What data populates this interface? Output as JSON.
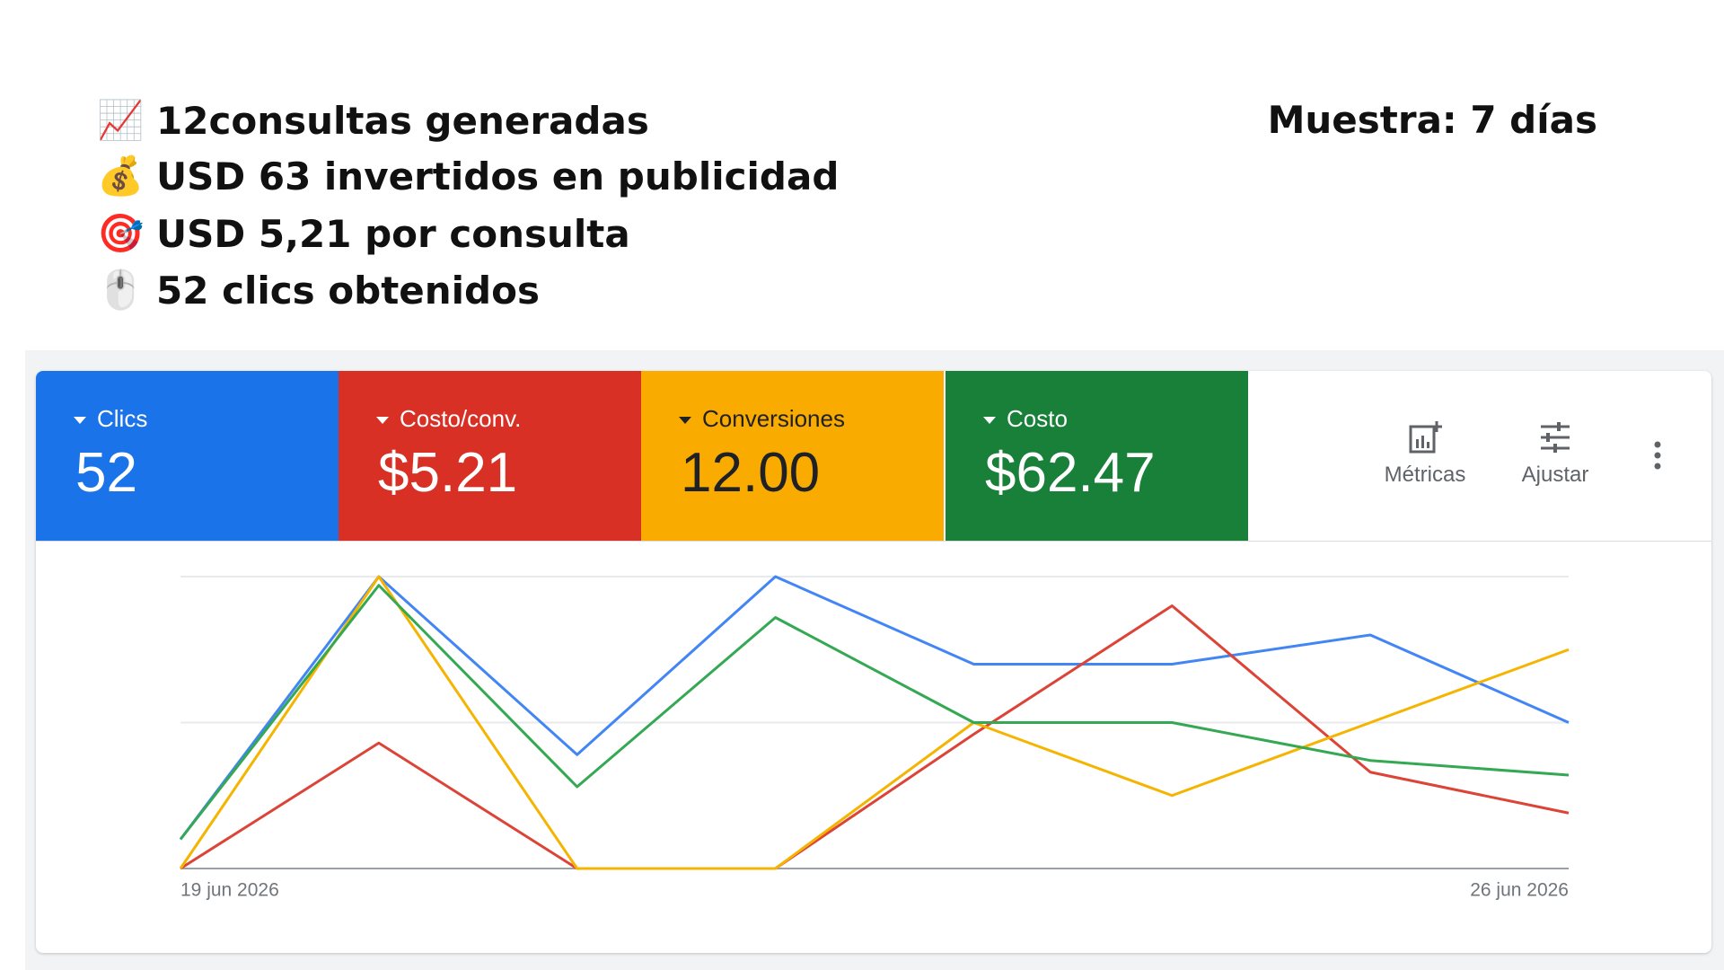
{
  "header": {
    "lines": [
      {
        "icon": "📈",
        "text": "12consultas generadas"
      },
      {
        "icon": "💰",
        "text": "USD 63 invertidos en publicidad"
      },
      {
        "icon": "🎯",
        "text": "USD 5,21 por consulta"
      },
      {
        "icon": "🖱️",
        "text": "52 clics obtenidos"
      }
    ],
    "sample": "Muestra: 7 días"
  },
  "tiles": [
    "52",
    "$5.21",
    "12.00",
    "$62.47"
  ],
  "tools": [
    "Métricas",
    "Ajustar"
  ],
  "chart_data": {
    "type": "line",
    "categories": [
      "19 jun 2026",
      null,
      null,
      null,
      null,
      null,
      null,
      "26 jun 2026"
    ],
    "series": [
      {
        "name": "Clics",
        "color": "#4285f4",
        "values": [
          10,
          100,
          39,
          100,
          70,
          70,
          80,
          50
        ]
      },
      {
        "name": "Costo/conv.",
        "color": "#db4437",
        "values": [
          0,
          43,
          0,
          0,
          46,
          90,
          33,
          19
        ]
      },
      {
        "name": "Conversiones",
        "color": "#f4b400",
        "values": [
          0,
          100,
          0,
          0,
          50,
          25,
          50,
          75
        ]
      },
      {
        "name": "Costo",
        "color": "#34a853",
        "values": [
          10,
          97,
          28,
          86,
          50,
          50,
          37,
          32
        ]
      }
    ],
    "ylim": [
      0,
      100
    ],
    "yticks": [
      0,
      50,
      100
    ],
    "grid": true
  }
}
